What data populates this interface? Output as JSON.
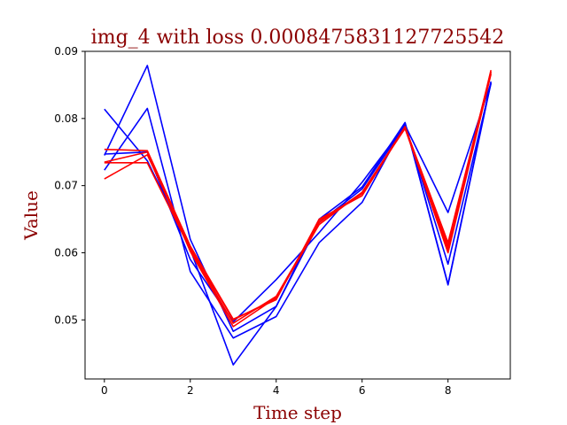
{
  "chart_data": {
    "type": "line",
    "title": "img_4 with loss 0.0008475831127725542",
    "xlabel": "Time step",
    "ylabel": "Value",
    "x": [
      0,
      1,
      2,
      3,
      4,
      5,
      6,
      7,
      8,
      9
    ],
    "xlim": [
      -0.45,
      9.45
    ],
    "ylim": [
      0.0412,
      0.09
    ],
    "xticks": [
      0,
      2,
      4,
      6,
      8
    ],
    "xtick_labels": [
      "0",
      "2",
      "4",
      "6",
      "8"
    ],
    "yticks": [
      0.05,
      0.06,
      0.07,
      0.08,
      0.09
    ],
    "ytick_labels": [
      "0.05",
      "0.06",
      "0.07",
      "0.08",
      "0.09"
    ],
    "grid": false,
    "legend": "none",
    "colors": {
      "title": "#8b0000",
      "axis_label": "#8b0000",
      "blue": "#0000ff",
      "red": "#ff0000"
    },
    "series": [
      {
        "color": "#0000ff",
        "values": [
          0.0814,
          0.0737,
          0.0605,
          0.0433,
          0.052,
          0.065,
          0.0698,
          0.0794,
          0.0553,
          0.0855
        ]
      },
      {
        "color": "#0000ff",
        "values": [
          0.0745,
          0.0879,
          0.062,
          0.0483,
          0.052,
          0.0645,
          0.0695,
          0.079,
          0.066,
          0.0853
        ]
      },
      {
        "color": "#0000ff",
        "values": [
          0.0723,
          0.0815,
          0.0572,
          0.0473,
          0.0505,
          0.0615,
          0.0675,
          0.0793,
          0.0552,
          0.0853
        ]
      },
      {
        "color": "#0000ff",
        "values": [
          0.0747,
          0.075,
          0.059,
          0.0497,
          0.056,
          0.063,
          0.0705,
          0.079,
          0.0583,
          0.0852
        ]
      },
      {
        "color": "#ff0000",
        "values": [
          0.0754,
          0.0752,
          0.061,
          0.0501,
          0.053,
          0.065,
          0.0685,
          0.0787,
          0.0615,
          0.087
        ]
      },
      {
        "color": "#ff0000",
        "values": [
          0.0734,
          0.0734,
          0.0605,
          0.0495,
          0.0535,
          0.0645,
          0.069,
          0.0785,
          0.0605,
          0.0872
        ]
      },
      {
        "color": "#ff0000",
        "values": [
          0.071,
          0.0746,
          0.0608,
          0.05,
          0.0532,
          0.0648,
          0.0688,
          0.0788,
          0.061,
          0.0868
        ]
      },
      {
        "color": "#ff0000",
        "values": [
          0.0735,
          0.075,
          0.0602,
          0.049,
          0.0533,
          0.0642,
          0.069,
          0.0786,
          0.06,
          0.0866
        ]
      }
    ]
  }
}
